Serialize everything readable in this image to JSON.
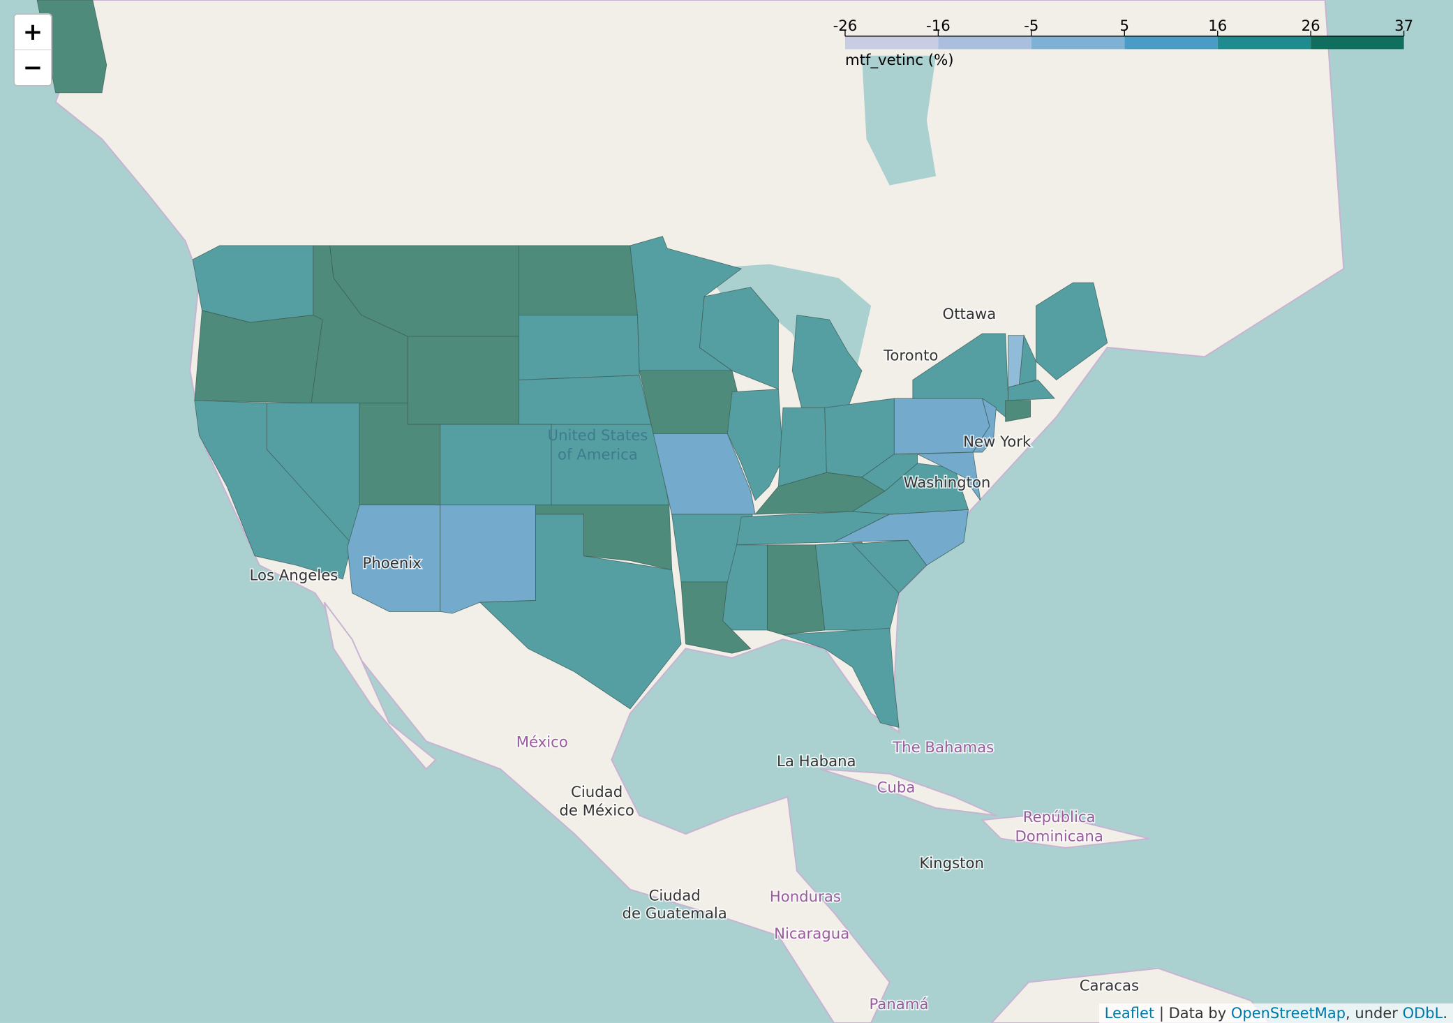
{
  "map": {
    "controls": {
      "zoom_in": "+",
      "zoom_out": "−"
    },
    "legend": {
      "title": "mtf_vetinc (%)",
      "ticks": [
        -26,
        -16,
        -5,
        5,
        16,
        26,
        37
      ],
      "colors": [
        "#c9cde4",
        "#a9bfdd",
        "#7eb1d3",
        "#4a9cc6",
        "#1e8b8f",
        "#0f6e5d"
      ]
    },
    "places": [
      "Ottawa",
      "Toronto",
      "United States",
      "of America",
      "New York",
      "Washington",
      "Phoenix",
      "Los Angeles",
      "México",
      "Ciudad",
      "de México",
      "La Habana",
      "The Bahamas",
      "Cuba",
      "República",
      "Dominicana",
      "Kingston",
      "Ciudad",
      "de Guatemala",
      "Honduras",
      "Nicaragua",
      "Caracas",
      "Panamá"
    ],
    "attribution": [
      "Leaflet",
      " | Data by ",
      "OpenStreetMap",
      ", under ",
      "ODbL",
      "."
    ]
  }
}
